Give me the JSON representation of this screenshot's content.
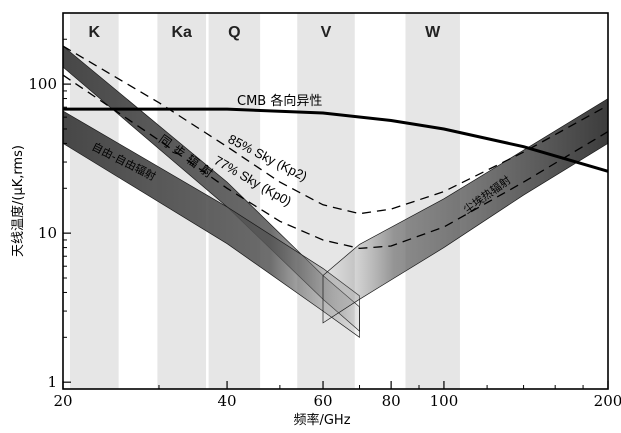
{
  "chart_data": {
    "type": "line",
    "xlabel": "频率/GHz",
    "ylabel": "天线温度/(μK,rms)",
    "xscale": "log",
    "yscale": "log",
    "xlim": [
      20,
      200
    ],
    "ylim": [
      0.9,
      300
    ],
    "x_ticks": [
      20,
      40,
      60,
      80,
      100,
      200
    ],
    "y_ticks": [
      1,
      10,
      100
    ],
    "bands": [
      {
        "label": "K",
        "range": [
          20.6,
          25.3
        ]
      },
      {
        "label": "Ka",
        "range": [
          29.8,
          36.6
        ]
      },
      {
        "label": "Q",
        "range": [
          37.0,
          46.0
        ]
      },
      {
        "label": "V",
        "range": [
          53.8,
          68.6
        ]
      },
      {
        "label": "W",
        "range": [
          85.0,
          107.0
        ]
      }
    ],
    "series": [
      {
        "name": "CMB 各向异性",
        "style": "thick",
        "x": [
          20,
          40,
          60,
          80,
          100,
          140,
          200
        ],
        "y": [
          68,
          68,
          64,
          57,
          50,
          38,
          26
        ]
      },
      {
        "name": "85% Sky (Kp2)",
        "style": "dashed",
        "x": [
          20,
          30,
          40,
          50,
          60,
          70,
          80,
          100,
          140,
          200
        ],
        "y": [
          180,
          75,
          38,
          22,
          15.5,
          13.5,
          14.5,
          19,
          35,
          72
        ]
      },
      {
        "name": "77% Sky (Kp0)",
        "style": "dashed",
        "x": [
          20,
          30,
          40,
          50,
          60,
          70,
          80,
          100,
          140,
          200
        ],
        "y": [
          115,
          42,
          20,
          12,
          9,
          7.9,
          8.2,
          11,
          22,
          48
        ]
      }
    ],
    "foregrounds": [
      {
        "name": "同步辐射",
        "x": [
          20,
          40,
          60,
          70
        ],
        "upper": [
          180,
          22,
          5.2,
          3.2
        ],
        "lower": [
          130,
          15,
          3.6,
          2.2
        ]
      },
      {
        "name": "自由-自由辐射",
        "x": [
          20,
          40,
          60,
          70
        ],
        "upper": [
          66,
          15,
          5.8,
          3.8
        ],
        "lower": [
          40,
          8.5,
          3.0,
          2.0
        ]
      },
      {
        "name": "尘埃热辐射",
        "x": [
          60,
          70,
          100,
          140,
          200
        ],
        "upper": [
          5.2,
          8.4,
          17,
          36,
          80
        ],
        "lower": [
          2.5,
          3.6,
          8,
          18,
          40
        ]
      }
    ]
  }
}
